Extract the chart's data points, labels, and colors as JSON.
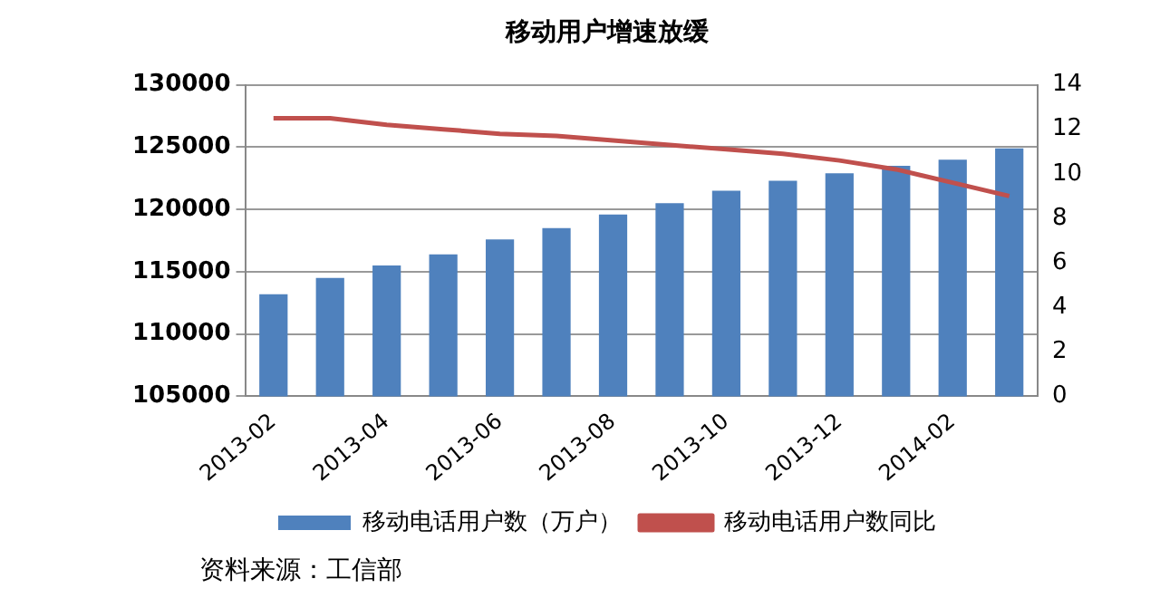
{
  "chart_data": {
    "type": "bar",
    "title": "移动用户增速放缓",
    "categories": [
      "2013-02",
      null,
      "2013-04",
      null,
      "2013-06",
      null,
      "2013-08",
      null,
      "2013-10",
      null,
      "2013-12",
      null,
      "2014-02",
      null
    ],
    "series": [
      {
        "name": "移动电话用户数（万户）",
        "color": "#4f81bd",
        "values": [
          113200,
          114500,
          115500,
          116400,
          117600,
          118500,
          119600,
          120500,
          121500,
          122300,
          122900,
          123500,
          124000,
          124900
        ]
      },
      {
        "name": "移动电话用户数同比",
        "type": "line",
        "axis": "y2",
        "color": "#c0504d",
        "values": [
          12.5,
          12.5,
          12.2,
          12.0,
          11.8,
          11.7,
          11.5,
          11.3,
          11.1,
          10.9,
          10.6,
          10.2,
          9.6,
          9.0
        ]
      }
    ],
    "ylim": [
      105000,
      130000
    ],
    "yticks": [
      105000,
      110000,
      115000,
      120000,
      125000,
      130000
    ],
    "y2lim": [
      0,
      14
    ],
    "y2ticks": [
      0,
      2,
      4,
      6,
      8,
      10,
      12,
      14
    ],
    "grid": "y",
    "legend": "bottom",
    "marker": "none",
    "annotations": [
      "资料来源：工信部"
    ]
  }
}
